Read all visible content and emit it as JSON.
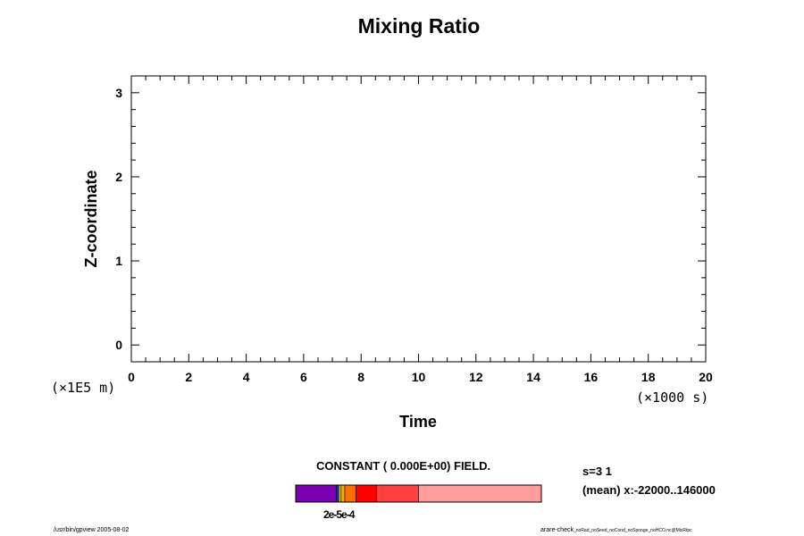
{
  "chart_data": {
    "type": "heatmap",
    "title": "Mixing Ratio",
    "xlabel": "Time",
    "ylabel": "Z-coordinate",
    "x_unit": "(×1000 s)",
    "y_unit": "(×1E5 m)",
    "xlim": [
      0,
      20
    ],
    "ylim": [
      -0.2,
      3.2
    ],
    "x_ticks": [
      0,
      2,
      4,
      6,
      8,
      10,
      12,
      14,
      16,
      18,
      20
    ],
    "y_ticks": [
      0,
      1,
      2,
      3
    ],
    "field_note": "CONSTANT ( 0.000E+00) FIELD.",
    "colorbar": {
      "label": "2e-5e-4",
      "segments": [
        {
          "from": 0.0,
          "to": 0.165,
          "color": "#7a00b4"
        },
        {
          "from": 0.165,
          "to": 0.175,
          "color": "#2030b0"
        },
        {
          "from": 0.175,
          "to": 0.185,
          "color": "#e0c000"
        },
        {
          "from": 0.185,
          "to": 0.2,
          "color": "#f0b000"
        },
        {
          "from": 0.2,
          "to": 0.245,
          "color": "#ff7000"
        },
        {
          "from": 0.245,
          "to": 0.33,
          "color": "#ff0000"
        },
        {
          "from": 0.33,
          "to": 0.5,
          "color": "#ff4040"
        },
        {
          "from": 0.5,
          "to": 1.0,
          "color": "#ff9c9c"
        }
      ]
    }
  },
  "info": {
    "line1": "s=3 1",
    "line2": "(mean) x:-22000..146000"
  },
  "footer": {
    "left": "/usr/bin/gpview 2005-08-02",
    "right_main": "arare-check",
    "right_small": "_noRad_noSeed_noCond_noSponge_noHCO.nc@MixRtpc"
  }
}
